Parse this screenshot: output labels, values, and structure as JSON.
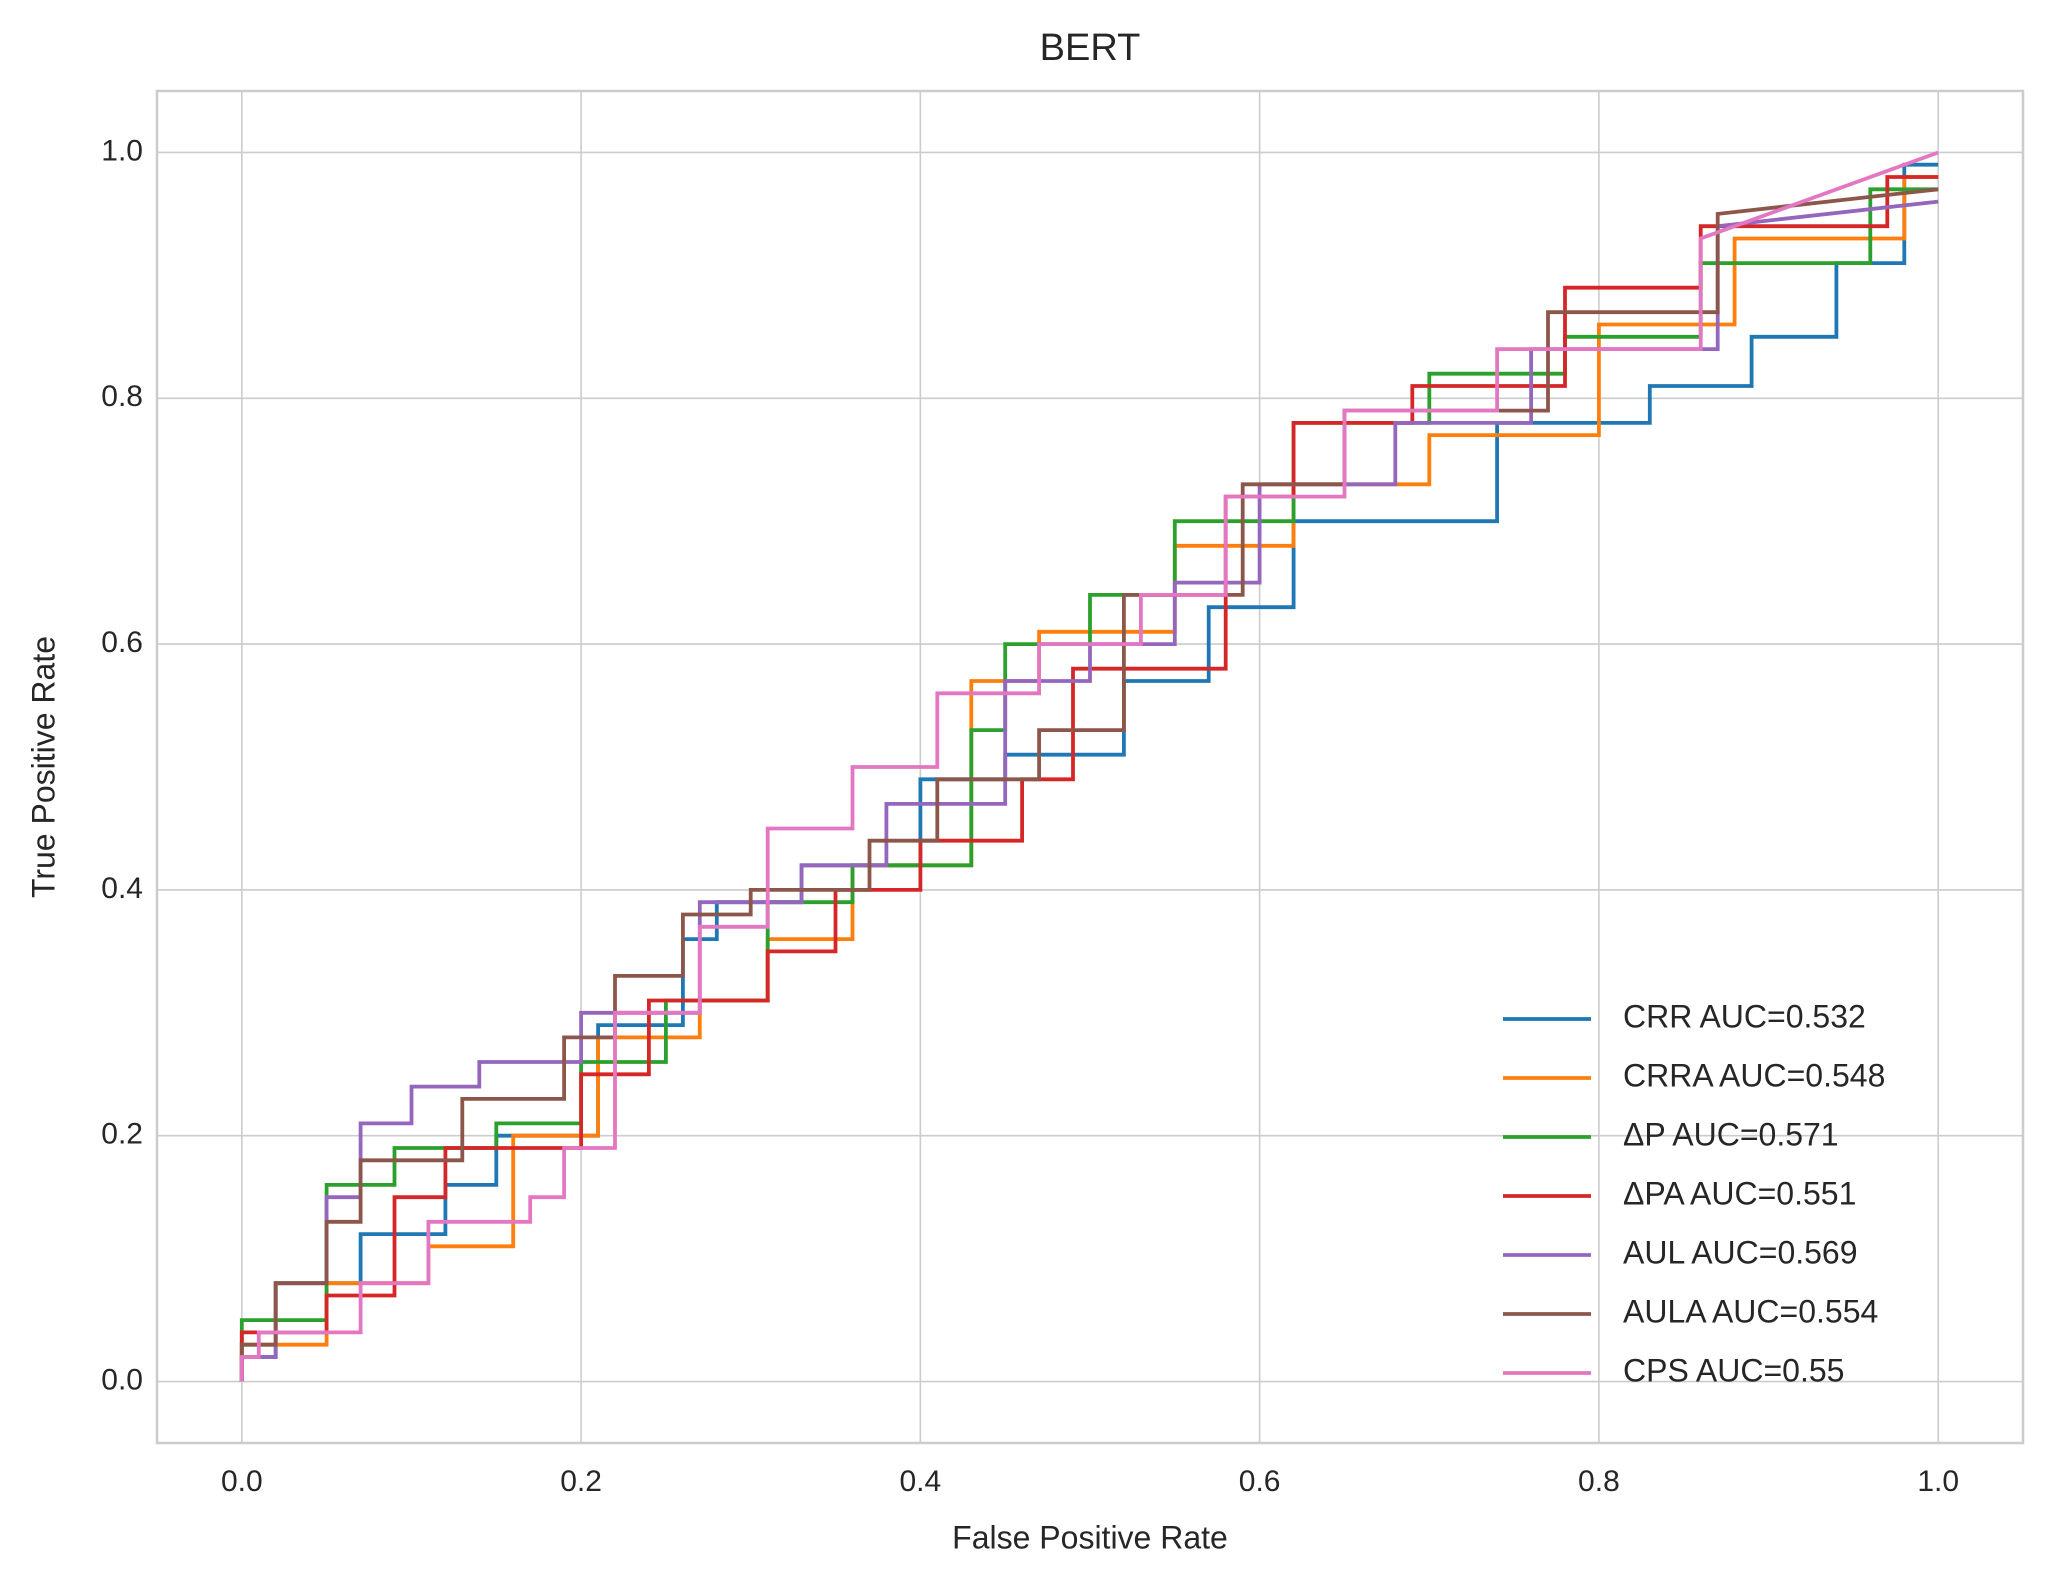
{
  "chart_data": {
    "type": "line",
    "title": "BERT",
    "xlabel": "False Positive Rate",
    "ylabel": "True Positive Rate",
    "xlim": [
      -0.05,
      1.05
    ],
    "ylim": [
      -0.05,
      1.05
    ],
    "xticks": [
      {
        "value": 0,
        "label": "0.0"
      },
      0.2,
      0.4,
      0.6,
      0.8,
      {
        "value": 1,
        "label": "1.0"
      }
    ],
    "yticks": [
      {
        "value": 0,
        "label": "0.0"
      },
      0.2,
      0.4,
      0.6,
      0.8,
      {
        "value": 1,
        "label": "1.0"
      }
    ],
    "grid": true,
    "legend": "lower right",
    "series": [
      {
        "name": "CRR AUC=0.532",
        "color": "#1f77b4",
        "x": [
          0,
          0,
          0.02,
          0.02,
          0.07,
          0.07,
          0.12,
          0.12,
          0.15,
          0.15,
          0.21,
          0.21,
          0.26,
          0.26,
          0.28,
          0.28,
          0.33,
          0.33,
          0.4,
          0.4,
          0.45,
          0.45,
          0.52,
          0.52,
          0.57,
          0.57,
          0.62,
          0.62,
          0.74,
          0.74,
          0.83,
          0.83,
          0.89,
          0.89,
          0.94,
          0.94,
          0.98,
          0.98,
          1
        ],
        "values": [
          0,
          0.02,
          0.02,
          0.08,
          0.08,
          0.12,
          0.12,
          0.16,
          0.16,
          0.2,
          0.2,
          0.29,
          0.29,
          0.36,
          0.36,
          0.39,
          0.39,
          0.42,
          0.42,
          0.49,
          0.49,
          0.51,
          0.51,
          0.57,
          0.57,
          0.63,
          0.63,
          0.7,
          0.7,
          0.78,
          0.78,
          0.81,
          0.81,
          0.85,
          0.85,
          0.91,
          0.91,
          0.99,
          0.99
        ]
      },
      {
        "name": "CRRA AUC=0.548",
        "color": "#ff7f0e",
        "x": [
          0,
          0,
          0.05,
          0.05,
          0.11,
          0.11,
          0.16,
          0.16,
          0.21,
          0.21,
          0.27,
          0.27,
          0.31,
          0.31,
          0.36,
          0.36,
          0.43,
          0.43,
          0.47,
          0.47,
          0.55,
          0.55,
          0.62,
          0.62,
          0.7,
          0.7,
          0.8,
          0.8,
          0.88,
          0.88,
          0.98,
          0.98,
          1
        ],
        "values": [
          0,
          0.03,
          0.03,
          0.08,
          0.08,
          0.11,
          0.11,
          0.2,
          0.2,
          0.28,
          0.28,
          0.31,
          0.31,
          0.36,
          0.36,
          0.42,
          0.42,
          0.57,
          0.57,
          0.61,
          0.61,
          0.68,
          0.68,
          0.73,
          0.73,
          0.77,
          0.77,
          0.86,
          0.86,
          0.93,
          0.93,
          0.98,
          0.98
        ]
      },
      {
        "name": "ΔP AUC=0.571",
        "color": "#2ca02c",
        "x": [
          0,
          0,
          0.05,
          0.05,
          0.09,
          0.09,
          0.15,
          0.15,
          0.2,
          0.2,
          0.25,
          0.25,
          0.31,
          0.31,
          0.36,
          0.36,
          0.43,
          0.43,
          0.45,
          0.45,
          0.5,
          0.5,
          0.55,
          0.55,
          0.62,
          0.62,
          0.7,
          0.7,
          0.78,
          0.78,
          0.86,
          0.86,
          0.96,
          0.96,
          1
        ],
        "values": [
          0,
          0.05,
          0.05,
          0.16,
          0.16,
          0.19,
          0.19,
          0.21,
          0.21,
          0.26,
          0.26,
          0.31,
          0.31,
          0.39,
          0.39,
          0.42,
          0.42,
          0.53,
          0.53,
          0.6,
          0.6,
          0.64,
          0.64,
          0.7,
          0.7,
          0.78,
          0.78,
          0.82,
          0.82,
          0.85,
          0.85,
          0.91,
          0.91,
          0.97,
          0.97
        ]
      },
      {
        "name": "ΔPA AUC=0.551",
        "color": "#d62728",
        "x": [
          0,
          0,
          0.05,
          0.05,
          0.09,
          0.09,
          0.12,
          0.12,
          0.2,
          0.2,
          0.24,
          0.24,
          0.31,
          0.31,
          0.35,
          0.35,
          0.4,
          0.4,
          0.46,
          0.46,
          0.49,
          0.49,
          0.58,
          0.58,
          0.62,
          0.62,
          0.69,
          0.69,
          0.78,
          0.78,
          0.86,
          0.86,
          0.97,
          0.97,
          1
        ],
        "values": [
          0,
          0.04,
          0.04,
          0.07,
          0.07,
          0.15,
          0.15,
          0.19,
          0.19,
          0.25,
          0.25,
          0.31,
          0.31,
          0.35,
          0.35,
          0.4,
          0.4,
          0.44,
          0.44,
          0.49,
          0.49,
          0.58,
          0.58,
          0.72,
          0.72,
          0.78,
          0.78,
          0.81,
          0.81,
          0.89,
          0.89,
          0.94,
          0.94,
          0.98,
          0.98
        ]
      },
      {
        "name": "AUL AUC=0.569",
        "color": "#9467bd",
        "x": [
          0,
          0,
          0.02,
          0.02,
          0.05,
          0.05,
          0.07,
          0.07,
          0.1,
          0.1,
          0.14,
          0.14,
          0.2,
          0.2,
          0.27,
          0.27,
          0.33,
          0.33,
          0.38,
          0.38,
          0.45,
          0.45,
          0.5,
          0.5,
          0.55,
          0.55,
          0.6,
          0.6,
          0.68,
          0.68,
          0.76,
          0.76,
          0.87,
          0.87,
          1
        ],
        "values": [
          0,
          0.02,
          0.02,
          0.08,
          0.08,
          0.15,
          0.15,
          0.21,
          0.21,
          0.24,
          0.24,
          0.26,
          0.26,
          0.3,
          0.3,
          0.39,
          0.39,
          0.42,
          0.42,
          0.47,
          0.47,
          0.57,
          0.57,
          0.6,
          0.6,
          0.65,
          0.65,
          0.73,
          0.73,
          0.78,
          0.78,
          0.84,
          0.84,
          0.94,
          0.96
        ]
      },
      {
        "name": "AULA AUC=0.554",
        "color": "#8c564b",
        "x": [
          0,
          0,
          0.02,
          0.02,
          0.05,
          0.05,
          0.07,
          0.07,
          0.13,
          0.13,
          0.19,
          0.19,
          0.22,
          0.22,
          0.26,
          0.26,
          0.3,
          0.3,
          0.37,
          0.37,
          0.41,
          0.41,
          0.47,
          0.47,
          0.52,
          0.52,
          0.59,
          0.59,
          0.65,
          0.65,
          0.77,
          0.77,
          0.87,
          0.87,
          1
        ],
        "values": [
          0,
          0.03,
          0.03,
          0.08,
          0.08,
          0.13,
          0.13,
          0.18,
          0.18,
          0.23,
          0.23,
          0.28,
          0.28,
          0.33,
          0.33,
          0.38,
          0.38,
          0.4,
          0.4,
          0.44,
          0.44,
          0.49,
          0.49,
          0.53,
          0.53,
          0.64,
          0.64,
          0.73,
          0.73,
          0.79,
          0.79,
          0.87,
          0.87,
          0.95,
          0.97
        ]
      },
      {
        "name": "CPS AUC=0.55",
        "color": "#e377c2",
        "x": [
          0,
          0,
          0.01,
          0.01,
          0.07,
          0.07,
          0.11,
          0.11,
          0.17,
          0.17,
          0.19,
          0.19,
          0.22,
          0.22,
          0.27,
          0.27,
          0.31,
          0.31,
          0.36,
          0.36,
          0.41,
          0.41,
          0.47,
          0.47,
          0.53,
          0.53,
          0.58,
          0.58,
          0.65,
          0.65,
          0.74,
          0.74,
          0.86,
          0.86,
          1
        ],
        "values": [
          0,
          0.02,
          0.02,
          0.04,
          0.04,
          0.08,
          0.08,
          0.13,
          0.13,
          0.15,
          0.15,
          0.19,
          0.19,
          0.3,
          0.3,
          0.37,
          0.37,
          0.45,
          0.45,
          0.5,
          0.5,
          0.56,
          0.56,
          0.6,
          0.6,
          0.64,
          0.64,
          0.72,
          0.72,
          0.79,
          0.79,
          0.84,
          0.84,
          0.93,
          1
        ]
      }
    ]
  }
}
